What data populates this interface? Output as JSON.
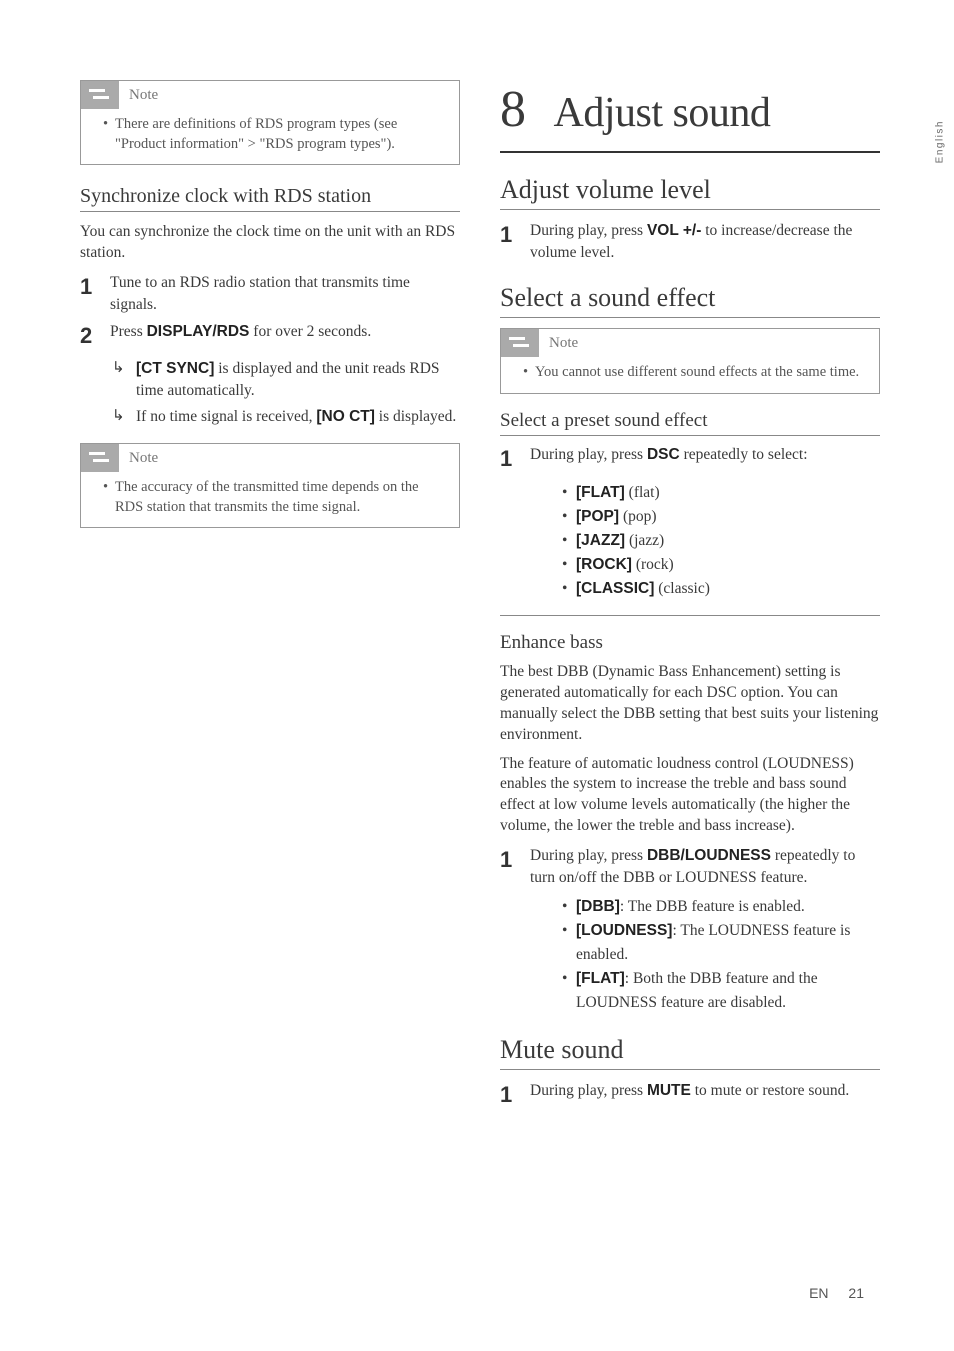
{
  "side_tab": "English",
  "footer": {
    "lang": "EN",
    "page": "21"
  },
  "left_col": {
    "note1": {
      "label": "Note",
      "text": "There are definitions of RDS program types (see \"Product information\" > \"RDS program types\")."
    },
    "sync_heading": "Synchronize clock with RDS station",
    "sync_intro": "You can synchronize the clock time on the unit with an RDS station.",
    "step1": "Tune to an RDS radio station that transmits time signals.",
    "step2_pre": "Press ",
    "step2_bold": "DISPLAY/RDS",
    "step2_post": " for over 2 seconds.",
    "res1_bold": "[CT SYNC]",
    "res1_post": " is displayed and the unit reads RDS time automatically.",
    "res2_pre": "If no time signal is received, ",
    "res2_bold": "[NO CT]",
    "res2_post": " is displayed.",
    "note2": {
      "label": "Note",
      "text": "The accuracy of the transmitted time depends on the RDS station that transmits the time signal."
    }
  },
  "right_col": {
    "chapter_num": "8",
    "chapter_title": "Adjust sound",
    "vol_heading": "Adjust volume level",
    "vol_step_pre": "During play, press ",
    "vol_step_bold": "VOL +/-",
    "vol_step_post": " to increase/decrease the volume level.",
    "effect_heading": "Select a sound effect",
    "note3": {
      "label": "Note",
      "text": "You cannot use different sound effects at the same time."
    },
    "preset_heading": "Select a preset sound effect",
    "preset_step_pre": "During play, press ",
    "preset_step_bold": "DSC",
    "preset_step_post": " repeatedly to select:",
    "presets": [
      {
        "code": "[FLAT]",
        "label": " (flat)"
      },
      {
        "code": "[POP]",
        "label": " (pop)"
      },
      {
        "code": "[JAZZ]",
        "label": " (jazz)"
      },
      {
        "code": "[ROCK]",
        "label": " (rock)"
      },
      {
        "code": "[CLASSIC]",
        "label": " (classic)"
      }
    ],
    "bass_heading": "Enhance bass",
    "bass_p1": "The best DBB (Dynamic Bass Enhancement) setting is generated automatically for each DSC option. You can manually select the DBB setting that best suits your listening environment.",
    "bass_p2": "The feature of automatic loudness control (LOUDNESS) enables the system to increase the treble and bass sound effect at low volume levels automatically (the higher the volume, the lower the treble and bass increase).",
    "bass_step_pre": "During play, press ",
    "bass_step_bold": "DBB/LOUDNESS",
    "bass_step_post": " repeatedly to turn on/off the DBB or LOUDNESS feature.",
    "bass_results": [
      {
        "code": "[DBB]",
        "label": ": The DBB feature is enabled."
      },
      {
        "code": "[LOUDNESS]",
        "label": ": The LOUDNESS feature is enabled."
      },
      {
        "code": "[FLAT]",
        "label": ": Both the DBB feature and the LOUDNESS feature are disabled."
      }
    ],
    "mute_heading": "Mute sound",
    "mute_step_pre": "During play, press ",
    "mute_step_bold": "MUTE",
    "mute_step_post": " to mute or restore sound."
  }
}
